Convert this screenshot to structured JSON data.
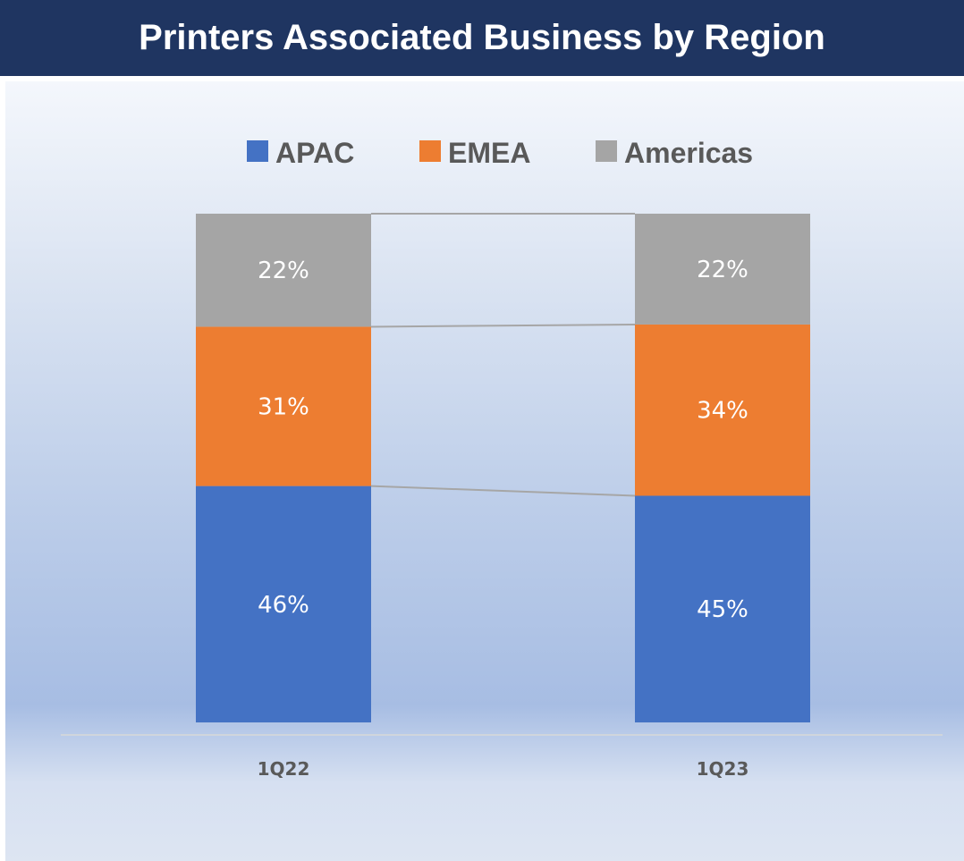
{
  "title": "Printers Associated Business by Region",
  "chart_data": {
    "type": "bar",
    "stacked": true,
    "normalized_percent": true,
    "categories": [
      "1Q22",
      "1Q23"
    ],
    "series": [
      {
        "name": "APAC",
        "values": [
          46,
          45
        ],
        "labels": [
          "46%",
          "45%"
        ],
        "color": "#4472c4"
      },
      {
        "name": "EMEA",
        "values": [
          31,
          34
        ],
        "labels": [
          "31%",
          "34%"
        ],
        "color": "#ed7d31"
      },
      {
        "name": "Americas",
        "values": [
          22,
          22
        ],
        "labels": [
          "22%",
          "22%"
        ],
        "color": "#a5a5a5"
      }
    ],
    "series_lines": true,
    "legend_position": "top",
    "grid": false,
    "ylim": [
      0,
      100
    ]
  }
}
